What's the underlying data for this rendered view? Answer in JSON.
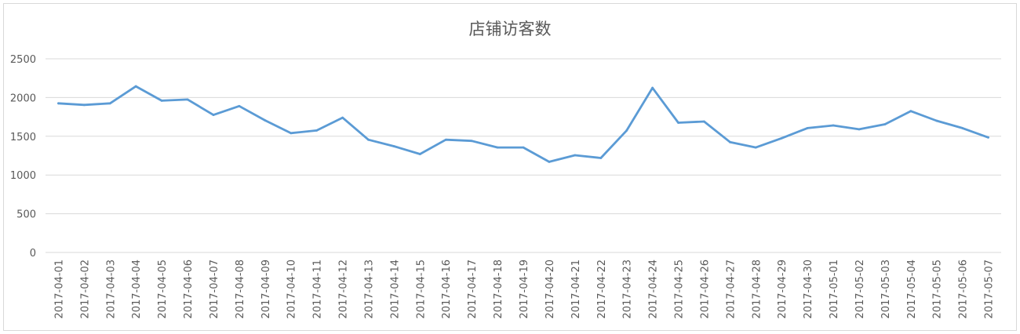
{
  "chart_data": {
    "type": "line",
    "title": "店铺访客数",
    "xlabel": "",
    "ylabel": "",
    "ylim": [
      0,
      2500
    ],
    "yticks": [
      0,
      500,
      1000,
      1500,
      2000,
      2500
    ],
    "grid": true,
    "legend": "none",
    "colors": {
      "line": "#5b9bd5",
      "grid": "#d9d9d9",
      "text": "#595959"
    },
    "categories": [
      "2017-04-01",
      "2017-04-02",
      "2017-04-03",
      "2017-04-04",
      "2017-04-05",
      "2017-04-06",
      "2017-04-07",
      "2017-04-08",
      "2017-04-09",
      "2017-04-10",
      "2017-04-11",
      "2017-04-12",
      "2017-04-13",
      "2017-04-14",
      "2017-04-15",
      "2017-04-16",
      "2017-04-17",
      "2017-04-18",
      "2017-04-19",
      "2017-04-20",
      "2017-04-21",
      "2017-04-22",
      "2017-04-23",
      "2017-04-24",
      "2017-04-25",
      "2017-04-26",
      "2017-04-27",
      "2017-04-28",
      "2017-04-29",
      "2017-04-30",
      "2017-05-01",
      "2017-05-02",
      "2017-05-03",
      "2017-05-04",
      "2017-05-05",
      "2017-05-06",
      "2017-05-07"
    ],
    "series": [
      {
        "name": "",
        "values": [
          1925,
          1905,
          1925,
          2145,
          1960,
          1975,
          1775,
          1890,
          1705,
          1540,
          1575,
          1740,
          1455,
          1370,
          1270,
          1455,
          1440,
          1355,
          1355,
          1170,
          1255,
          1220,
          1575,
          2125,
          1675,
          1690,
          1425,
          1355,
          1475,
          1605,
          1640,
          1590,
          1655,
          1825,
          1700,
          1605,
          1485
        ]
      }
    ]
  }
}
